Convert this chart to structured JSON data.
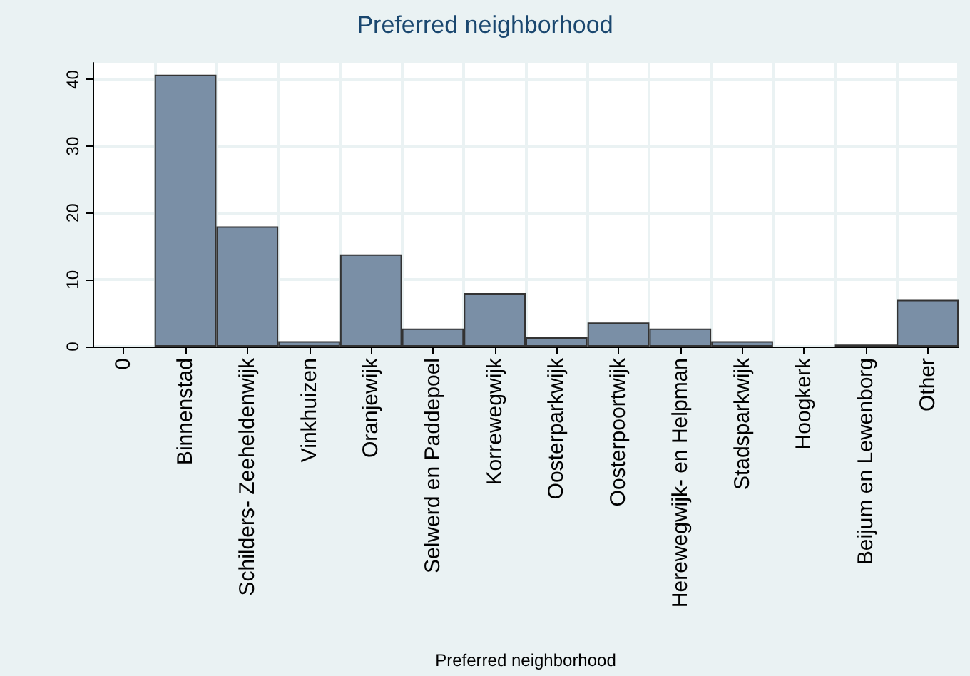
{
  "chart_data": {
    "type": "bar",
    "title": "Preferred neighborhood",
    "xlabel": "Preferred neighborhood",
    "categories": [
      "0",
      "Binnenstad",
      "Schilders- Zeeheldenwijk",
      "Vinkhuizen",
      "Oranjewijk",
      "Selwerd en Paddepoel",
      "Korrewegwijk",
      "Oosterparkwijk",
      "Oosterpoortwijk",
      "Herewegwijk- en Helpman",
      "Stadsparkwijk",
      "Hoogkerk",
      "Beijum en Lewenborg",
      "Other"
    ],
    "values": [
      null,
      40.7,
      18,
      0.8,
      13.8,
      2.7,
      8,
      1.4,
      3.6,
      2.7,
      0.8,
      null,
      0.3,
      7
    ],
    "color": "#7a8fa6",
    "ylim": [
      0,
      42.5
    ],
    "yticks": [
      0,
      10,
      20,
      30,
      40
    ],
    "grid": true
  }
}
